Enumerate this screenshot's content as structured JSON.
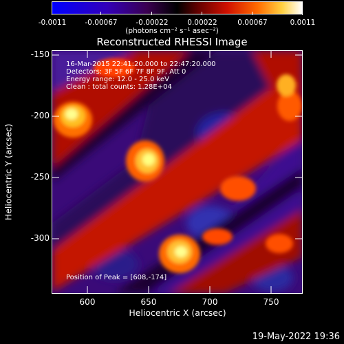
{
  "colorbar": {
    "tick_labels": [
      "-0.0011",
      "-0.00067",
      "-0.00022",
      "0.00022",
      "0.00067",
      "0.0011"
    ],
    "units_label": "(photons cm⁻² s⁻¹ asec⁻²)",
    "colors": [
      "#0000ff",
      "#1a00d8",
      "#4a0090",
      "#000000",
      "#5a0000",
      "#b40000",
      "#ff3c00",
      "#ffb000",
      "#ffff60",
      "#ffffff"
    ]
  },
  "plot": {
    "title": "Reconstructed RHESSI Image",
    "info_lines": [
      "16-Mar-2015 22:41:20.000 to 22:47:20.000",
      "Detectors: 3F 5F 6F 7F 8F 9F, Att 0",
      "Energy range: 12.0 - 25.0 keV",
      "Clean : total counts: 1.28E+04"
    ],
    "peak_text": "Position of Peak = [608,-174]",
    "xlabel": "Heliocentric X (arcsec)",
    "ylabel": "Heliocentric Y (arcsec)",
    "xtick_labels": [
      "600",
      "650",
      "700",
      "750"
    ],
    "ytick_labels": [
      "-150",
      "-200",
      "-250",
      "-300"
    ]
  },
  "footer": {
    "timestamp": "19-May-2022 19:36"
  }
}
